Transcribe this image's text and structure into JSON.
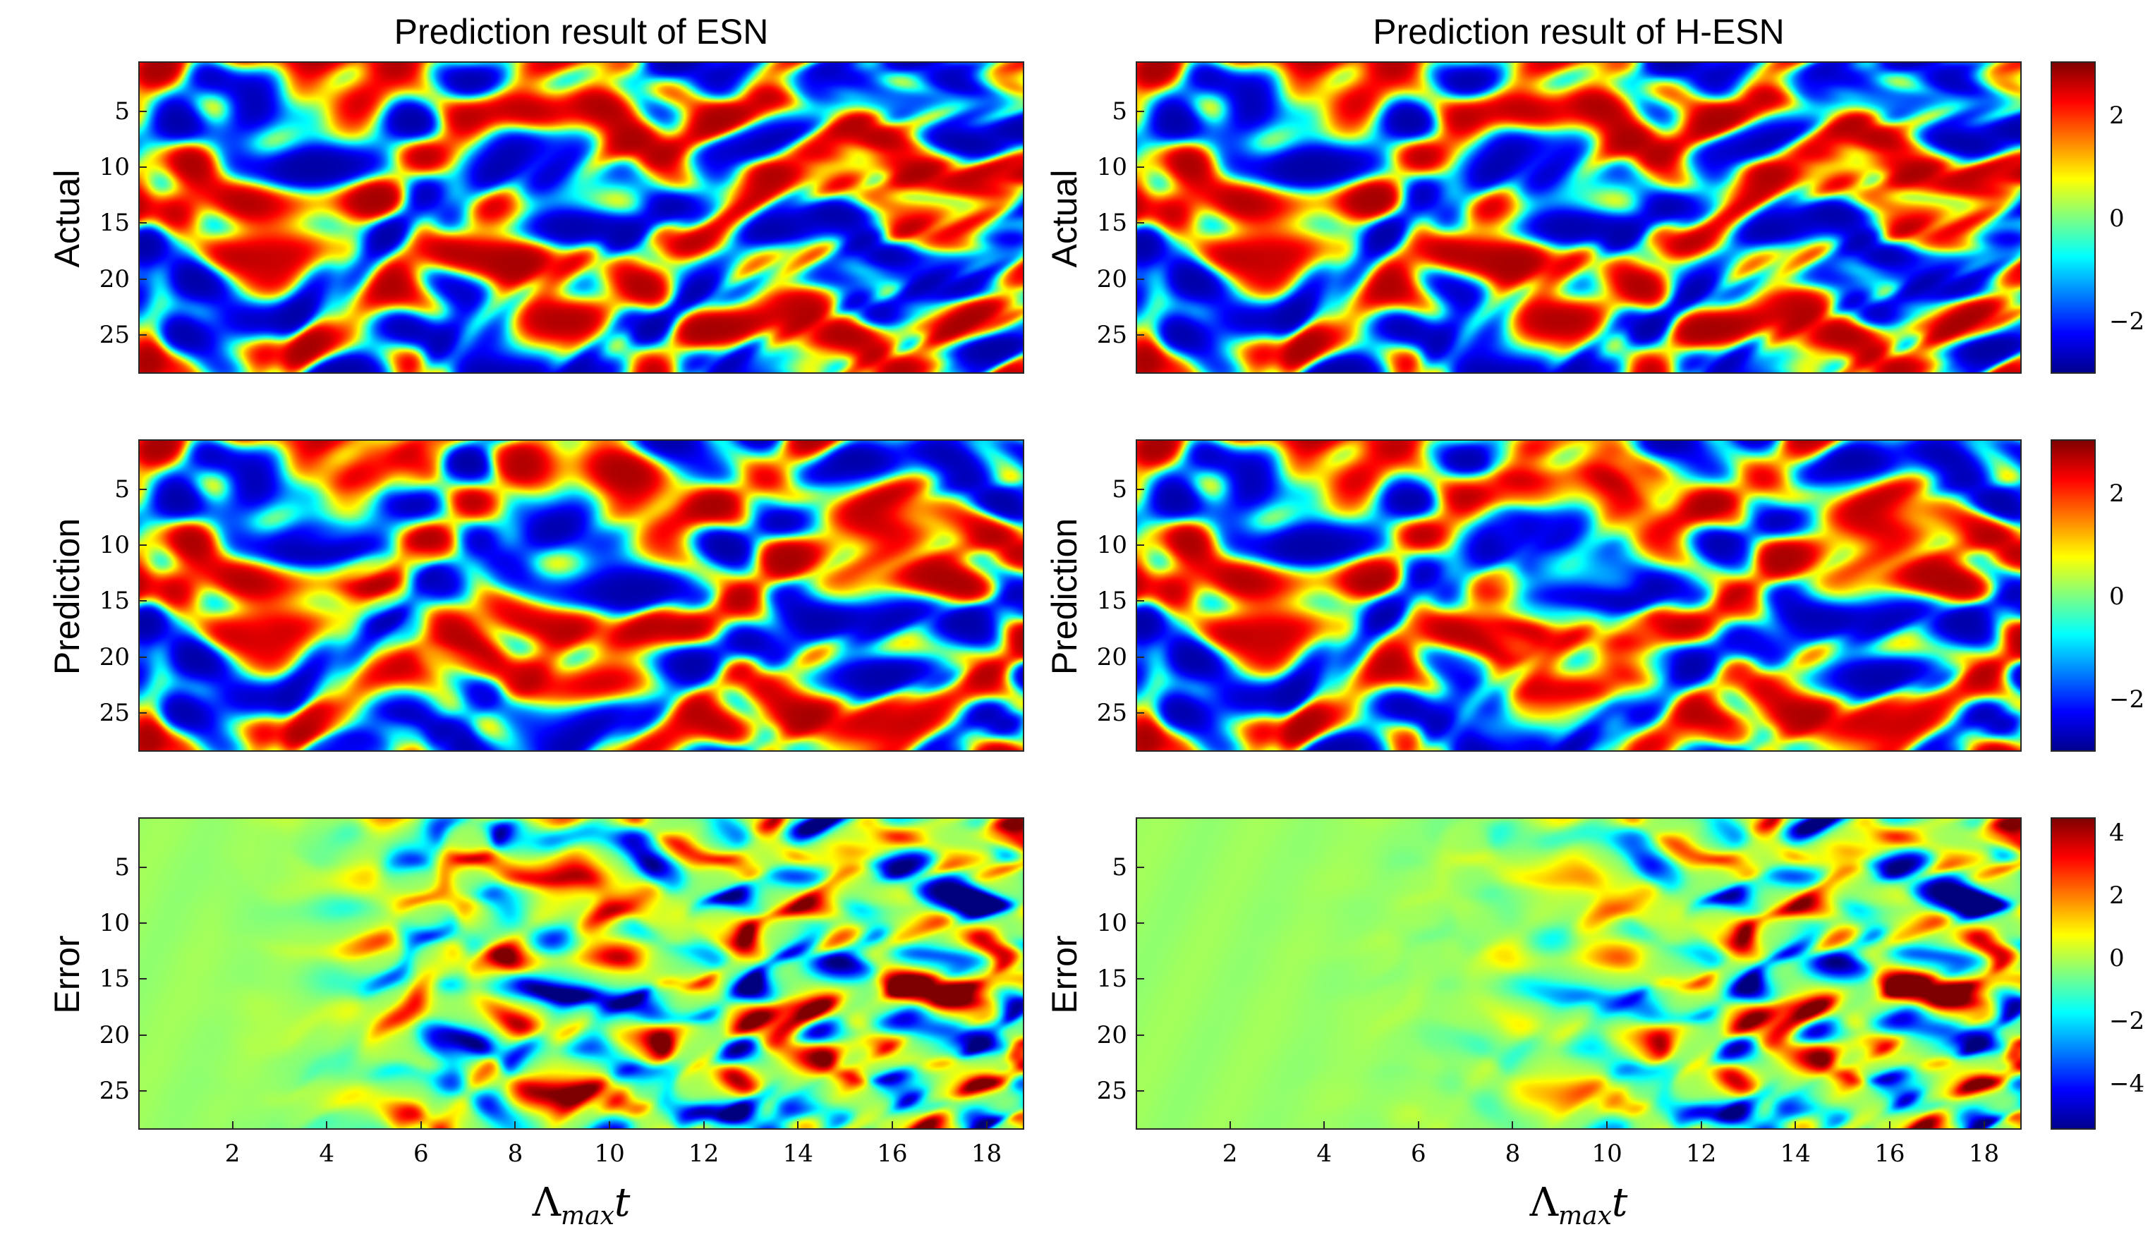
{
  "chart_data": [
    {
      "type": "heatmap",
      "panel": "esn-actual",
      "title": "Prediction result of ESN",
      "ylabel": "Actual",
      "xlabel": "Λmax t",
      "x_range": [
        0,
        18.8
      ],
      "y_range": [
        1,
        28
      ],
      "yticks": [
        "5",
        "10",
        "15",
        "20",
        "25"
      ],
      "xticks": [],
      "clim": [
        -3,
        3
      ]
    },
    {
      "type": "heatmap",
      "panel": "esn-prediction",
      "ylabel": "Prediction",
      "x_range": [
        0,
        18.8
      ],
      "y_range": [
        1,
        28
      ],
      "yticks": [
        "5",
        "10",
        "15",
        "20",
        "25"
      ],
      "xticks": [],
      "clim": [
        -3,
        3
      ]
    },
    {
      "type": "heatmap",
      "panel": "esn-error",
      "ylabel": "Error",
      "x_range": [
        0,
        18.8
      ],
      "y_range": [
        1,
        28
      ],
      "yticks": [
        "5",
        "10",
        "15",
        "20",
        "25"
      ],
      "xticks": [
        "2",
        "4",
        "6",
        "8",
        "10",
        "12",
        "14",
        "16",
        "18"
      ],
      "clim": [
        -5,
        4.5
      ],
      "error_onset_x": 5.2
    },
    {
      "type": "heatmap",
      "panel": "hesn-actual",
      "title": "Prediction result of H-ESN",
      "ylabel": "Actual",
      "x_range": [
        0,
        18.8
      ],
      "y_range": [
        1,
        28
      ],
      "yticks": [
        "5",
        "10",
        "15",
        "20",
        "25"
      ],
      "xticks": [],
      "clim": [
        -3,
        3
      ],
      "colorbar_ticks": [
        "2",
        "0",
        "−2"
      ]
    },
    {
      "type": "heatmap",
      "panel": "hesn-prediction",
      "ylabel": "Prediction",
      "x_range": [
        0,
        18.8
      ],
      "y_range": [
        1,
        28
      ],
      "yticks": [
        "5",
        "10",
        "15",
        "20",
        "25"
      ],
      "xticks": [],
      "clim": [
        -3,
        3
      ],
      "colorbar_ticks": [
        "2",
        "0",
        "−2"
      ]
    },
    {
      "type": "heatmap",
      "panel": "hesn-error",
      "ylabel": "Error",
      "x_range": [
        0,
        18.8
      ],
      "y_range": [
        1,
        28
      ],
      "yticks": [
        "5",
        "10",
        "15",
        "20",
        "25"
      ],
      "xticks": [
        "2",
        "4",
        "6",
        "8",
        "10",
        "12",
        "14",
        "16",
        "18"
      ],
      "clim": [
        -5,
        4.5
      ],
      "colorbar_ticks": [
        "4",
        "2",
        "0",
        "−2",
        "−4"
      ],
      "error_onset_x": 9.5
    }
  ],
  "titles": {
    "left": "Prediction result of ESN",
    "right": "Prediction result of H-ESN"
  },
  "ylabels": {
    "actual": "Actual",
    "prediction": "Prediction",
    "error": "Error"
  },
  "xlabel": {
    "main": "Λ",
    "sub": "max",
    "var": "t"
  },
  "yticks": [
    "5",
    "10",
    "15",
    "20",
    "25"
  ],
  "xticks": [
    "2",
    "4",
    "6",
    "8",
    "10",
    "12",
    "14",
    "16",
    "18"
  ],
  "colorbar_ticks": {
    "state": [
      "2",
      "0",
      "−2"
    ],
    "error": [
      "4",
      "2",
      "0",
      "−2",
      "−4"
    ]
  }
}
